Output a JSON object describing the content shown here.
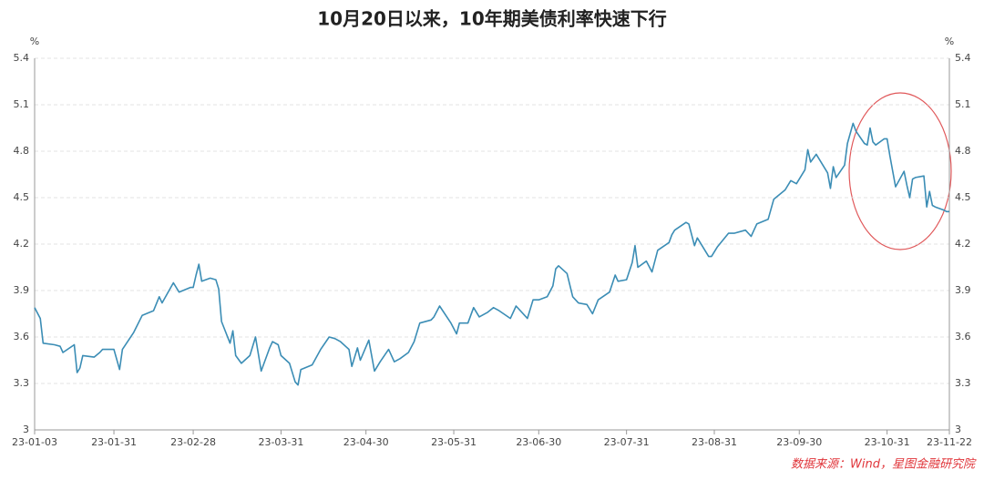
{
  "chart_data": {
    "type": "line",
    "title": "10月20日以来，10年期美债利率快速下行",
    "y_unit": "%",
    "source": "数据来源：Wind，星图金融研究院",
    "x": [
      "23-01-03",
      "23-01-05",
      "23-01-06",
      "23-01-10",
      "23-01-12",
      "23-01-13",
      "23-01-17",
      "23-01-18",
      "23-01-19",
      "23-01-20",
      "23-01-24",
      "23-01-26",
      "23-01-27",
      "23-01-31",
      "23-02-02",
      "23-02-03",
      "23-02-07",
      "23-02-10",
      "23-02-14",
      "23-02-16",
      "23-02-17",
      "23-02-21",
      "23-02-23",
      "23-02-27",
      "23-02-28",
      "23-03-01",
      "23-03-02",
      "23-03-03",
      "23-03-06",
      "23-03-08",
      "23-03-09",
      "23-03-10",
      "23-03-13",
      "23-03-14",
      "23-03-15",
      "23-03-17",
      "23-03-20",
      "23-03-22",
      "23-03-24",
      "23-03-27",
      "23-03-28",
      "23-03-30",
      "23-03-31",
      "23-04-03",
      "23-04-05",
      "23-04-06",
      "23-04-07",
      "23-04-11",
      "23-04-14",
      "23-04-17",
      "23-04-19",
      "23-04-21",
      "23-04-24",
      "23-04-25",
      "23-04-27",
      "23-04-28",
      "23-05-01",
      "23-05-03",
      "23-05-05",
      "23-05-08",
      "23-05-10",
      "23-05-12",
      "23-05-15",
      "23-05-17",
      "23-05-19",
      "23-05-23",
      "23-05-24",
      "23-05-26",
      "23-05-30",
      "23-06-01",
      "23-06-02",
      "23-06-05",
      "23-06-07",
      "23-06-09",
      "23-06-12",
      "23-06-14",
      "23-06-16",
      "23-06-20",
      "23-06-22",
      "23-06-26",
      "23-06-28",
      "23-06-30",
      "23-07-03",
      "23-07-05",
      "23-07-06",
      "23-07-07",
      "23-07-10",
      "23-07-12",
      "23-07-14",
      "23-07-17",
      "23-07-19",
      "23-07-21",
      "23-07-25",
      "23-07-27",
      "23-07-28",
      "23-07-31",
      "23-08-02",
      "23-08-03",
      "23-08-04",
      "23-08-07",
      "23-08-09",
      "23-08-11",
      "23-08-15",
      "23-08-16",
      "23-08-17",
      "23-08-21",
      "23-08-22",
      "23-08-24",
      "23-08-25",
      "23-08-29",
      "23-08-30",
      "23-09-01",
      "23-09-05",
      "23-09-07",
      "23-09-11",
      "23-09-13",
      "23-09-15",
      "23-09-19",
      "23-09-21",
      "23-09-25",
      "23-09-27",
      "23-09-29",
      "23-10-02",
      "23-10-03",
      "23-10-04",
      "23-10-06",
      "23-10-10",
      "23-10-11",
      "23-10-12",
      "23-10-13",
      "23-10-16",
      "23-10-17",
      "23-10-19",
      "23-10-20",
      "23-10-23",
      "23-10-24",
      "23-10-25",
      "23-10-26",
      "23-10-27",
      "23-10-30",
      "23-10-31",
      "23-11-01",
      "23-11-02",
      "23-11-03",
      "23-11-06",
      "23-11-07",
      "23-11-08",
      "23-11-09",
      "23-11-10",
      "23-11-13",
      "23-11-14",
      "23-11-15",
      "23-11-16",
      "23-11-17",
      "23-11-20",
      "23-11-21",
      "23-11-22"
    ],
    "series": [
      {
        "name": "10年期美债利率",
        "color": "#3b8db5",
        "values": [
          3.79,
          3.72,
          3.56,
          3.55,
          3.54,
          3.5,
          3.55,
          3.37,
          3.4,
          3.48,
          3.47,
          3.5,
          3.52,
          3.52,
          3.39,
          3.52,
          3.63,
          3.74,
          3.77,
          3.86,
          3.82,
          3.95,
          3.89,
          3.92,
          3.92,
          4.0,
          4.07,
          3.96,
          3.98,
          3.97,
          3.91,
          3.7,
          3.56,
          3.64,
          3.48,
          3.43,
          3.48,
          3.6,
          3.38,
          3.53,
          3.57,
          3.55,
          3.48,
          3.43,
          3.31,
          3.29,
          3.39,
          3.42,
          3.52,
          3.6,
          3.59,
          3.57,
          3.52,
          3.41,
          3.53,
          3.45,
          3.58,
          3.38,
          3.44,
          3.52,
          3.44,
          3.46,
          3.5,
          3.57,
          3.69,
          3.71,
          3.73,
          3.8,
          3.69,
          3.62,
          3.69,
          3.69,
          3.79,
          3.73,
          3.76,
          3.79,
          3.77,
          3.72,
          3.8,
          3.72,
          3.84,
          3.84,
          3.86,
          3.93,
          4.04,
          4.06,
          4.01,
          3.86,
          3.82,
          3.81,
          3.75,
          3.84,
          3.89,
          4.0,
          3.96,
          3.97,
          4.08,
          4.19,
          4.05,
          4.09,
          4.02,
          4.16,
          4.21,
          4.26,
          4.29,
          4.34,
          4.33,
          4.19,
          4.24,
          4.12,
          4.12,
          4.18,
          4.27,
          4.27,
          4.29,
          4.25,
          4.33,
          4.36,
          4.49,
          4.55,
          4.61,
          4.59,
          4.68,
          4.81,
          4.73,
          4.78,
          4.66,
          4.56,
          4.7,
          4.63,
          4.71,
          4.85,
          4.98,
          4.93,
          4.85,
          4.84,
          4.95,
          4.86,
          4.84,
          4.88,
          4.88,
          4.77,
          4.67,
          4.57,
          4.67,
          4.58,
          4.5,
          4.62,
          4.63,
          4.64,
          4.44,
          4.54,
          4.45,
          4.44,
          4.42,
          4.41,
          4.41
        ]
      }
    ],
    "xlim": [
      "23-01-03",
      "23-11-22"
    ],
    "xticks": [
      "23-01-03",
      "23-01-31",
      "23-02-28",
      "23-03-31",
      "23-04-30",
      "23-05-31",
      "23-06-30",
      "23-07-31",
      "23-08-31",
      "23-09-30",
      "23-10-31",
      "23-11-22"
    ],
    "ylim": [
      3,
      5.4
    ],
    "yticks": [
      3,
      3.3,
      3.6,
      3.9,
      4.2,
      4.5,
      4.8,
      5.1,
      5.4
    ],
    "grid": true
  }
}
